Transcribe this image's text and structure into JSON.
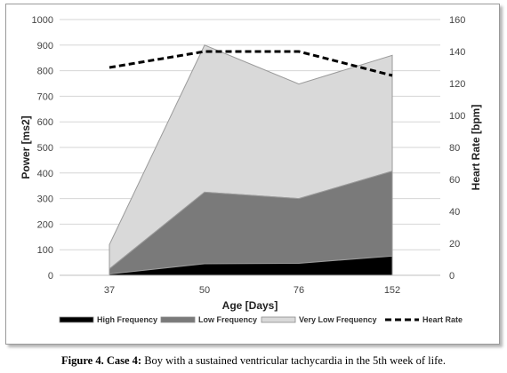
{
  "caption": {
    "label": "Figure 4.",
    "case": "Case 4:",
    "text": "Boy with a sustained ventricular tachycardia in the 5th week of life."
  },
  "chart_data": {
    "type": "area",
    "title": "",
    "xlabel": "Age [Days]",
    "ylabel": "Power [ms2]",
    "y2label": "Heart Rate [bpm]",
    "categories": [
      "37",
      "50",
      "76",
      "152"
    ],
    "ylim": [
      0,
      1000
    ],
    "yticks": [
      0,
      100,
      200,
      300,
      400,
      500,
      600,
      700,
      800,
      900,
      1000
    ],
    "y2lim": [
      0,
      160
    ],
    "y2ticks": [
      0,
      20,
      40,
      60,
      80,
      100,
      120,
      140,
      160
    ],
    "stacked": true,
    "series": [
      {
        "name": "High Frequency",
        "values": [
          5,
          45,
          47,
          75
        ],
        "color": "#000000",
        "axis": "left"
      },
      {
        "name": "Low Frequency",
        "values": [
          20,
          280,
          253,
          332
        ],
        "color": "#7a7a7a",
        "axis": "left"
      },
      {
        "name": "Very Low Frequency",
        "values": [
          95,
          575,
          448,
          453
        ],
        "color": "#d9d9d9",
        "axis": "left"
      },
      {
        "name": "Heart Rate",
        "values": [
          130,
          140,
          140,
          125
        ],
        "color": "#000000",
        "axis": "right",
        "style": "dashed"
      }
    ],
    "legend": "bottom",
    "grid": true
  }
}
